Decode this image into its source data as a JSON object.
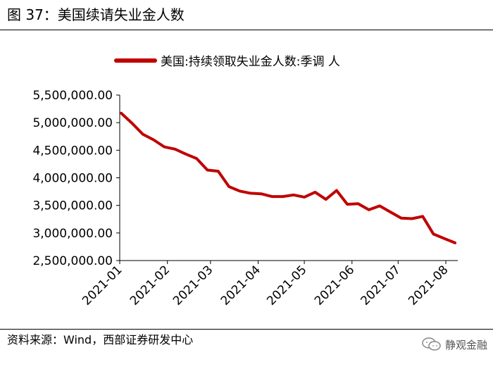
{
  "figure_title": "图 37：美国续请失业金人数",
  "source_note": "资料来源：Wind，西部证券研发中心",
  "watermark_text": "静观金融",
  "watermark_icon": "wechat-icon",
  "colors": {
    "series": "#c00000",
    "axis": "#000000"
  },
  "chart_data": {
    "type": "line",
    "title": "",
    "xlabel": "",
    "ylabel": "",
    "ylim": [
      2500000,
      5500000
    ],
    "yticks": [
      "5,500,000.00",
      "5,000,000.00",
      "4,500,000.00",
      "4,000,000.00",
      "3,500,000.00",
      "3,000,000.00",
      "2,500,000.00"
    ],
    "ytick_values": [
      5500000,
      5000000,
      4500000,
      4000000,
      3500000,
      3000000,
      2500000
    ],
    "xticks": [
      "2021-01",
      "2021-02",
      "2021-03",
      "2021-04",
      "2021-05",
      "2021-06",
      "2021-07",
      "2021-08"
    ],
    "grid": false,
    "legend_position": "top",
    "series": [
      {
        "name": "美国:持续领取失业金人数:季调 人",
        "x": [
          "2021-01-02",
          "2021-01-09",
          "2021-01-16",
          "2021-01-23",
          "2021-01-30",
          "2021-02-06",
          "2021-02-13",
          "2021-02-20",
          "2021-02-27",
          "2021-03-06",
          "2021-03-13",
          "2021-03-20",
          "2021-03-27",
          "2021-04-03",
          "2021-04-10",
          "2021-04-17",
          "2021-04-24",
          "2021-05-01",
          "2021-05-08",
          "2021-05-15",
          "2021-05-22",
          "2021-05-29",
          "2021-06-05",
          "2021-06-12",
          "2021-06-19",
          "2021-06-26",
          "2021-07-03",
          "2021-07-10",
          "2021-07-17",
          "2021-07-24",
          "2021-07-31",
          "2021-08-07"
        ],
        "values": [
          5170000,
          4990000,
          4790000,
          4690000,
          4560000,
          4520000,
          4430000,
          4350000,
          4140000,
          4120000,
          3840000,
          3760000,
          3720000,
          3710000,
          3660000,
          3660000,
          3690000,
          3650000,
          3740000,
          3610000,
          3770000,
          3520000,
          3530000,
          3420000,
          3490000,
          3380000,
          3270000,
          3260000,
          3300000,
          2980000,
          2900000,
          2820000
        ]
      }
    ]
  }
}
